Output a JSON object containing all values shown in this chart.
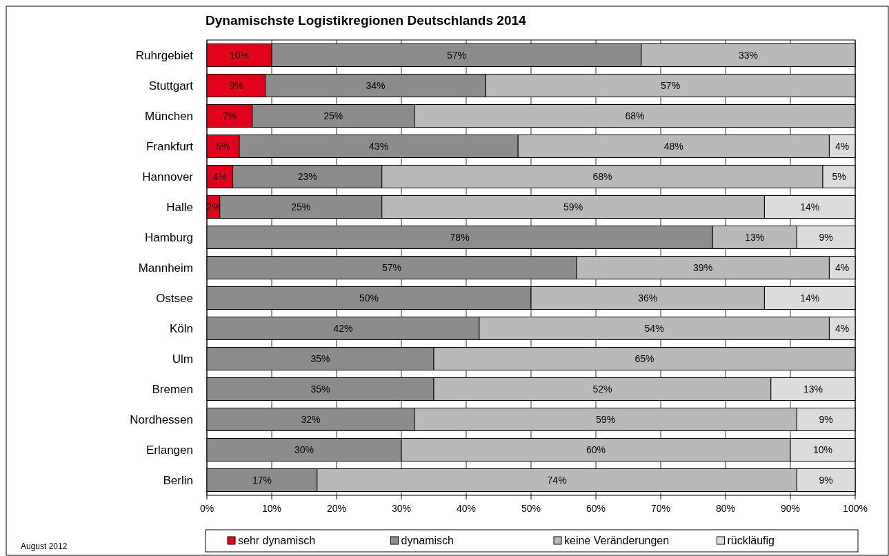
{
  "chart_data": {
    "type": "bar",
    "orientation": "horizontal",
    "stacked": true,
    "title": "Dynamischste Logistikregionen Deutschlands 2014",
    "categories": [
      "Ruhrgebiet",
      "Stuttgart",
      "München",
      "Frankfurt",
      "Hannover",
      "Halle",
      "Hamburg",
      "Mannheim",
      "Ostsee",
      "Köln",
      "Ulm",
      "Bremen",
      "Nordhessen",
      "Erlangen",
      "Berlin"
    ],
    "series": [
      {
        "name": "sehr dynamisch",
        "color": "#e2001a",
        "values": [
          10,
          9,
          7,
          5,
          4,
          2,
          null,
          null,
          null,
          null,
          null,
          null,
          null,
          null,
          null
        ],
        "value_labels": [
          "10%",
          "9%",
          "7%",
          "5%",
          "4%",
          "2%",
          null,
          null,
          null,
          null,
          null,
          null,
          null,
          null,
          null
        ]
      },
      {
        "name": "dynamisch",
        "color": "#8c8c8c",
        "values": [
          57,
          34,
          25,
          43,
          23,
          25,
          78,
          57,
          50,
          42,
          35,
          35,
          32,
          30,
          17
        ],
        "value_labels": [
          "57%",
          "34%",
          "25%",
          "43%",
          "23%",
          "25%",
          "78%",
          "57%",
          "50%",
          "42%",
          "35%",
          "35%",
          "32%",
          "30%",
          "17%"
        ]
      },
      {
        "name": "keine Veränderungen",
        "color": "#b9b9b9",
        "values": [
          33,
          57,
          68,
          48,
          68,
          59,
          13,
          39,
          36,
          54,
          65,
          52,
          59,
          60,
          74
        ],
        "value_labels": [
          "33%",
          "57%",
          "68%",
          "48%",
          "68%",
          "59%",
          "13%",
          "39%",
          "36%",
          "54%",
          "65%",
          "52%",
          "59%",
          "60%",
          "74%"
        ]
      },
      {
        "name": "rückläufig",
        "color": "#dcdcdc",
        "values": [
          null,
          null,
          null,
          4,
          5,
          14,
          9,
          4,
          14,
          4,
          null,
          13,
          9,
          10,
          9
        ],
        "value_labels": [
          null,
          null,
          null,
          "4%",
          "5%",
          "14%",
          "9%",
          "4%",
          "14%",
          "4%",
          null,
          "13%",
          "9%",
          "10%",
          "9%"
        ]
      }
    ],
    "xlim": [
      0,
      100
    ],
    "xticks": [
      {
        "value": 0,
        "label": "0%"
      },
      {
        "value": 10,
        "label": "10%"
      },
      {
        "value": 20,
        "label": "20%"
      },
      {
        "value": 30,
        "label": "30%"
      },
      {
        "value": 40,
        "label": "40%"
      },
      {
        "value": 50,
        "label": "50%"
      },
      {
        "value": 60,
        "label": "60%"
      },
      {
        "value": 70,
        "label": "70%"
      },
      {
        "value": 80,
        "label": "80%"
      },
      {
        "value": 90,
        "label": "90%"
      },
      {
        "value": 100,
        "label": "100%"
      }
    ],
    "grid": "x",
    "legend": "bottom",
    "annotations": [
      "August 2012"
    ]
  }
}
